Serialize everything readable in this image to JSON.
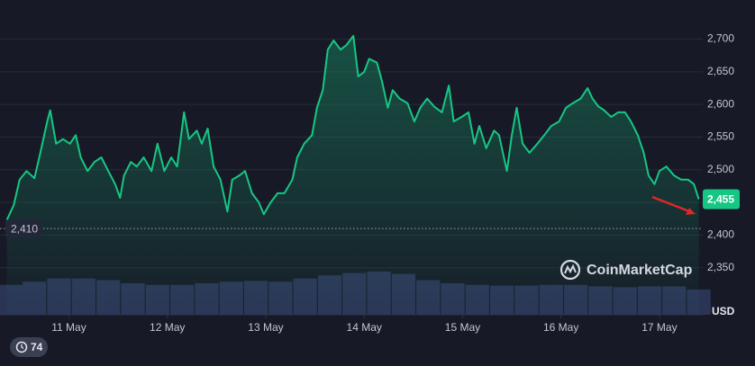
{
  "chart_data": {
    "type": "line",
    "xlim": [
      10.3,
      17.44
    ],
    "xticks": [
      {
        "value": 11,
        "label": "11 May"
      },
      {
        "value": 12,
        "label": "12 May"
      },
      {
        "value": 13,
        "label": "13 May"
      },
      {
        "value": 14,
        "label": "14 May"
      },
      {
        "value": 15,
        "label": "15 May"
      },
      {
        "value": 16,
        "label": "16 May"
      },
      {
        "value": 17,
        "label": "17 May"
      }
    ],
    "ylim": [
      2278,
      2760
    ],
    "yticks": [
      {
        "value": 2350,
        "label": "2,350"
      },
      {
        "value": 2400,
        "label": "2,400"
      },
      {
        "value": 2450,
        "label": "2,450"
      },
      {
        "value": 2500,
        "label": "2,500"
      },
      {
        "value": 2550,
        "label": "2,550"
      },
      {
        "value": 2600,
        "label": "2,600"
      },
      {
        "value": 2650,
        "label": "2,650"
      },
      {
        "value": 2700,
        "label": "2,700"
      }
    ],
    "grid": true,
    "y_unit": "USD",
    "volume_lim": [
      0,
      400
    ],
    "series": [
      {
        "color": "#16c784",
        "x": [
          10.37,
          10.44,
          10.5,
          10.57,
          10.65,
          10.71,
          10.78,
          10.81,
          10.87,
          10.94,
          11.01,
          11.07,
          11.12,
          11.19,
          11.26,
          11.33,
          11.4,
          11.47,
          11.52,
          11.56,
          11.63,
          11.69,
          11.76,
          11.84,
          11.9,
          11.97,
          12.04,
          12.1,
          12.17,
          12.22,
          12.3,
          12.35,
          12.41,
          12.47,
          12.54,
          12.61,
          12.66,
          12.73,
          12.79,
          12.86,
          12.93,
          12.98,
          13.05,
          13.12,
          13.19,
          13.27,
          13.32,
          13.39,
          13.47,
          13.52,
          13.58,
          13.63,
          13.69,
          13.76,
          13.82,
          13.89,
          13.94,
          14.0,
          14.05,
          14.13,
          14.18,
          14.24,
          14.29,
          14.36,
          14.44,
          14.51,
          14.57,
          14.64,
          14.71,
          14.79,
          14.86,
          14.91,
          14.99,
          15.06,
          15.12,
          15.17,
          15.24,
          15.32,
          15.37,
          15.45,
          15.5,
          15.55,
          15.61,
          15.68,
          15.76,
          15.83,
          15.9,
          15.98,
          16.05,
          16.12,
          16.2,
          16.27,
          16.32,
          16.38,
          16.43,
          16.51,
          16.58,
          16.65,
          16.71,
          16.78,
          16.84,
          16.89,
          16.95,
          17.0,
          17.07,
          17.15,
          17.22,
          17.29,
          17.35,
          17.4
        ],
        "values": [
          2423,
          2446,
          2485,
          2498,
          2487,
          2526,
          2574,
          2591,
          2540,
          2547,
          2540,
          2553,
          2519,
          2498,
          2512,
          2519,
          2498,
          2478,
          2457,
          2491,
          2512,
          2505,
          2519,
          2498,
          2540,
          2498,
          2519,
          2505,
          2588,
          2547,
          2560,
          2540,
          2563,
          2505,
          2485,
          2436,
          2485,
          2491,
          2498,
          2464,
          2450,
          2432,
          2450,
          2464,
          2464,
          2485,
          2519,
          2540,
          2553,
          2595,
          2622,
          2684,
          2698,
          2684,
          2691,
          2705,
          2643,
          2650,
          2670,
          2664,
          2636,
          2595,
          2622,
          2609,
          2602,
          2574,
          2595,
          2609,
          2597,
          2588,
          2629,
          2574,
          2581,
          2588,
          2540,
          2567,
          2533,
          2560,
          2553,
          2498,
          2553,
          2595,
          2540,
          2526,
          2540,
          2553,
          2567,
          2574,
          2595,
          2602,
          2609,
          2625,
          2609,
          2597,
          2592,
          2581,
          2588,
          2588,
          2574,
          2553,
          2526,
          2491,
          2478,
          2498,
          2505,
          2491,
          2485,
          2485,
          2478,
          2455
        ]
      },
      {
        "color": "#2c3456",
        "axis": "volume",
        "x": [
          10.4,
          10.65,
          10.9,
          11.15,
          11.4,
          11.65,
          11.9,
          12.15,
          12.4,
          12.65,
          12.9,
          13.15,
          13.4,
          13.65,
          13.9,
          14.15,
          14.4,
          14.65,
          14.9,
          15.15,
          15.4,
          15.65,
          15.9,
          16.15,
          16.4,
          16.65,
          16.9,
          17.15,
          17.4
        ],
        "values": [
          38,
          42,
          46,
          46,
          44,
          40,
          38,
          38,
          40,
          42,
          43,
          42,
          46,
          50,
          53,
          55,
          52,
          44,
          40,
          38,
          37,
          37,
          38,
          38,
          36,
          35,
          36,
          36,
          32
        ]
      }
    ],
    "reference": {
      "value": 2410,
      "label": "2,410"
    },
    "current_price": {
      "value": 2455,
      "label": "2,455"
    },
    "watermark": "CoinMarketCap",
    "badge": 74
  }
}
